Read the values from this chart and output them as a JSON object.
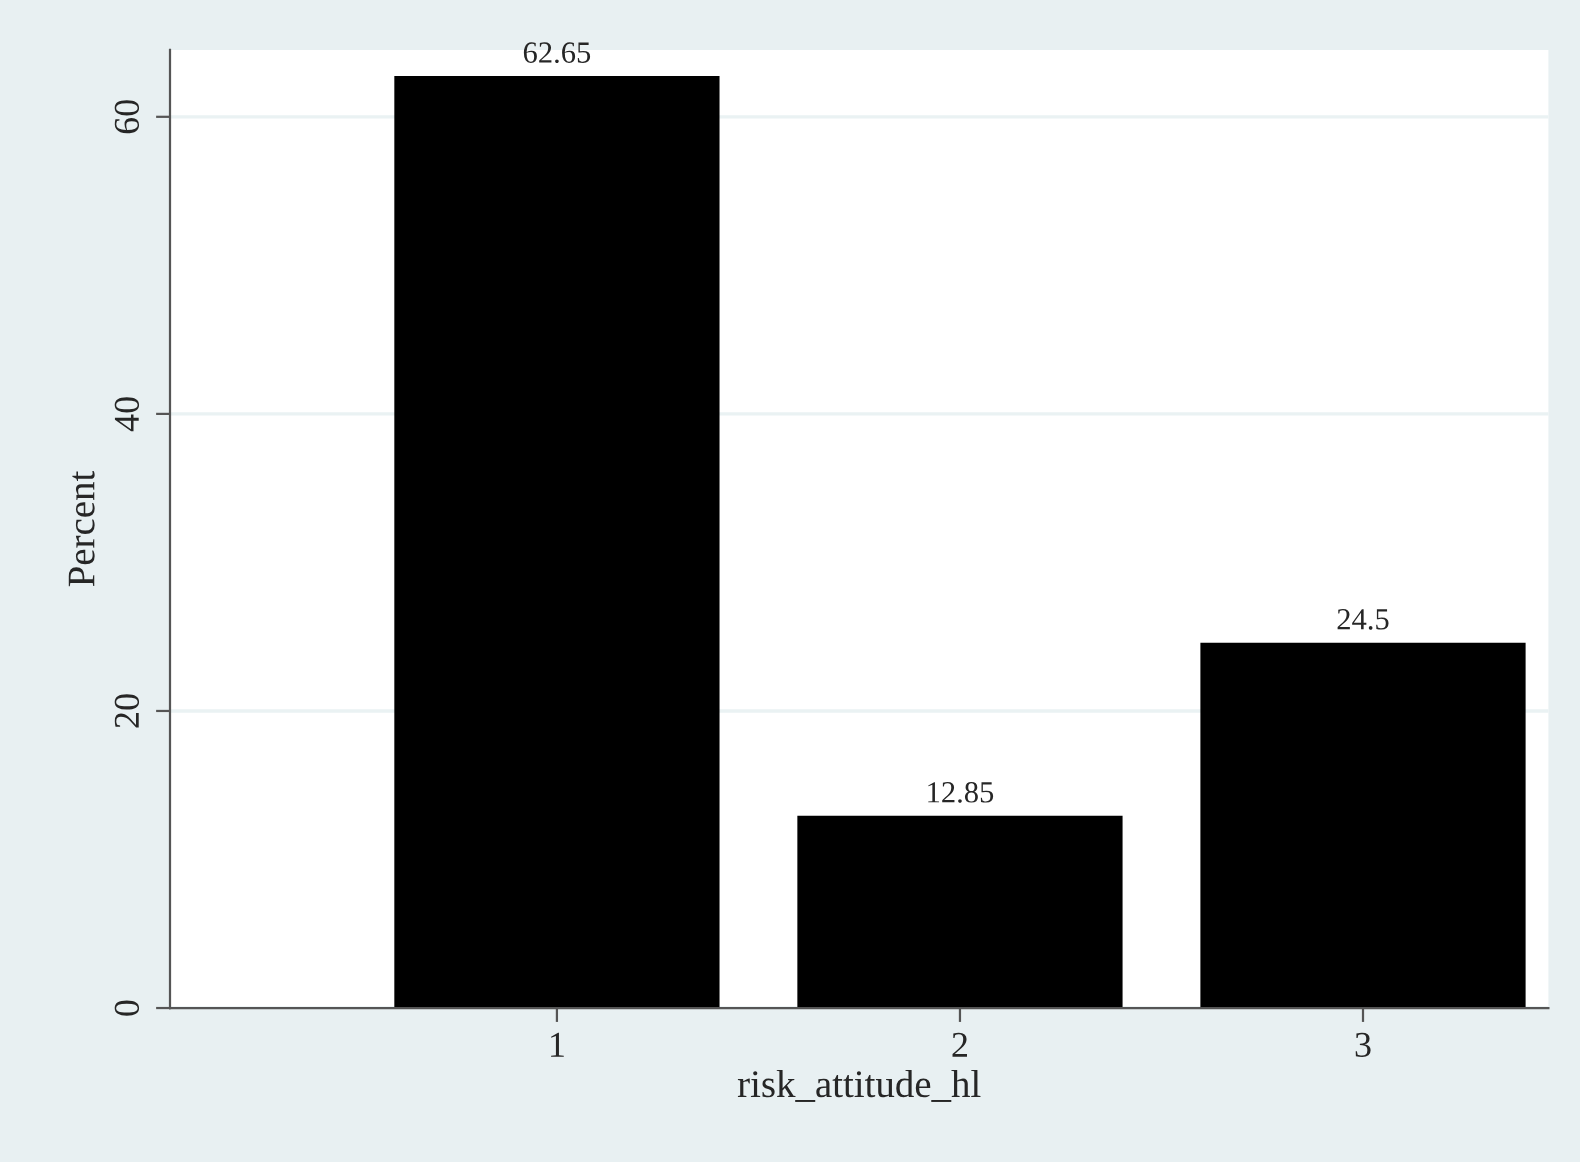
{
  "chart_data": {
    "type": "bar",
    "xlabel": "risk_attitude_hl",
    "ylabel": "Percent",
    "x": [
      1,
      2,
      3
    ],
    "values": [
      62.65,
      12.85,
      24.5
    ],
    "color": "#000000",
    "xlim": [
      0.04,
      3.46
    ],
    "xticks": [
      1,
      2,
      3
    ],
    "ylim": [
      0,
      64.5
    ],
    "yticks": [
      0,
      20,
      40,
      60
    ],
    "grid": "y",
    "data_labels": true
  }
}
